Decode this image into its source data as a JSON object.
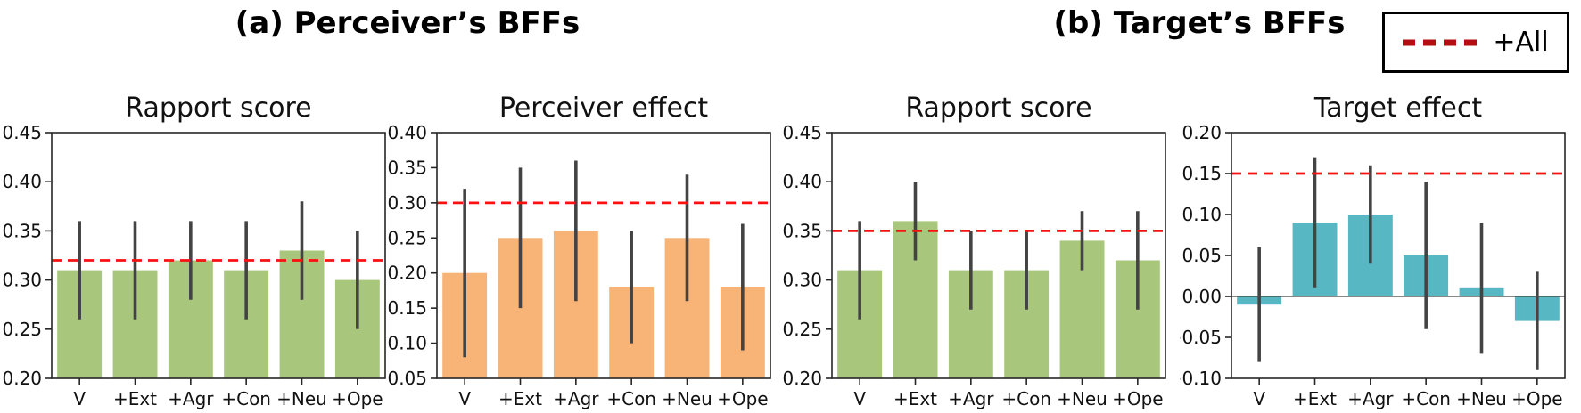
{
  "headers": {
    "section_a": "(a) Perceiver’s BFFs",
    "section_b": "(b) Target’s BFFs"
  },
  "legend": {
    "label": "+All",
    "dash_color": "#b30e14",
    "border_color": "#000000"
  },
  "colors": {
    "green": "#a9c67d",
    "orange": "#f8b377",
    "teal": "#57b7c2",
    "ref_line": "#fa1010",
    "error_bar": "#434343",
    "spine": "#262626"
  },
  "chart_data": [
    {
      "type": "bar",
      "title": "Rapport score",
      "section": "a",
      "categories": [
        "V",
        "+Ext",
        "+Agr",
        "+Con",
        "+Neu",
        "+Ope"
      ],
      "values": [
        0.31,
        0.31,
        0.32,
        0.31,
        0.33,
        0.3
      ],
      "error_low": [
        0.26,
        0.26,
        0.28,
        0.26,
        0.28,
        0.25
      ],
      "error_high": [
        0.36,
        0.36,
        0.36,
        0.36,
        0.38,
        0.35
      ],
      "ref_line": 0.32,
      "ylim": [
        0.2,
        0.45
      ],
      "yticks": [
        "0.20",
        "0.25",
        "0.30",
        "0.35",
        "0.40",
        "0.45"
      ],
      "zero_line": false,
      "bar_color_key": "green",
      "legend_position": "none",
      "grid": false
    },
    {
      "type": "bar",
      "title": "Perceiver effect",
      "section": "a",
      "categories": [
        "V",
        "+Ext",
        "+Agr",
        "+Con",
        "+Neu",
        "+Ope"
      ],
      "values": [
        0.2,
        0.25,
        0.26,
        0.18,
        0.25,
        0.18
      ],
      "error_low": [
        0.08,
        0.15,
        0.16,
        0.1,
        0.16,
        0.09
      ],
      "error_high": [
        0.32,
        0.35,
        0.36,
        0.26,
        0.34,
        0.27
      ],
      "ref_line": 0.3,
      "ylim": [
        0.05,
        0.4
      ],
      "yticks": [
        "0.05",
        "0.10",
        "0.15",
        "0.20",
        "0.25",
        "0.30",
        "0.35",
        "0.40"
      ],
      "zero_line": false,
      "bar_color_key": "orange",
      "legend_position": "none",
      "grid": false
    },
    {
      "type": "bar",
      "title": "Rapport score",
      "section": "b",
      "categories": [
        "V",
        "+Ext",
        "+Agr",
        "+Con",
        "+Neu",
        "+Ope"
      ],
      "values": [
        0.31,
        0.36,
        0.31,
        0.31,
        0.34,
        0.32
      ],
      "error_low": [
        0.26,
        0.32,
        0.27,
        0.27,
        0.31,
        0.27
      ],
      "error_high": [
        0.36,
        0.4,
        0.35,
        0.35,
        0.37,
        0.37
      ],
      "ref_line": 0.35,
      "ylim": [
        0.2,
        0.45
      ],
      "yticks": [
        "0.20",
        "0.25",
        "0.30",
        "0.35",
        "0.40",
        "0.45"
      ],
      "zero_line": false,
      "bar_color_key": "green",
      "legend_position": "none",
      "grid": false
    },
    {
      "type": "bar",
      "title": "Target effect",
      "section": "b",
      "categories": [
        "V",
        "+Ext",
        "+Agr",
        "+Con",
        "+Neu",
        "+Ope"
      ],
      "values": [
        -0.01,
        0.09,
        0.1,
        0.05,
        0.01,
        -0.03
      ],
      "error_low": [
        -0.08,
        0.01,
        0.04,
        -0.04,
        -0.07,
        -0.09
      ],
      "error_high": [
        0.06,
        0.17,
        0.16,
        0.14,
        0.09,
        0.03
      ],
      "ref_line": 0.15,
      "ylim": [
        -0.1,
        0.2
      ],
      "yticks": [
        "−0.10",
        "−0.05",
        "0.00",
        "0.05",
        "0.10",
        "0.15",
        "0.20"
      ],
      "zero_line": true,
      "bar_color_key": "teal",
      "legend_position": "none",
      "grid": false
    }
  ]
}
